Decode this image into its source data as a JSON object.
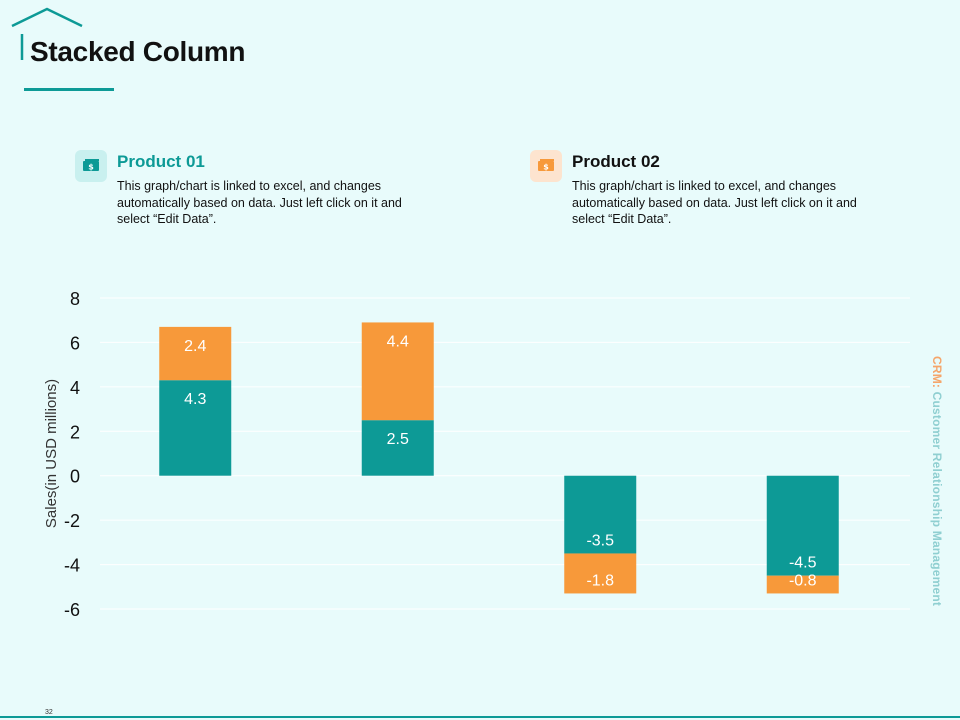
{
  "page": {
    "title": "Stacked Column",
    "side_text_accent": "CRM:",
    "side_text_rest": " Customer Relationship Management",
    "page_number": "32"
  },
  "legend": [
    {
      "title": "Product 01",
      "description": "This graph/chart is linked to excel, and changes automatically based on data. Just left click on it and select “Edit Data”.",
      "icon": "money-icon",
      "color": "#0d9a96"
    },
    {
      "title": "Product 02",
      "description": "This graph/chart is linked to excel, and changes automatically based on data. Just left click on it and select “Edit Data”.",
      "icon": "money-icon",
      "color": "#f7993a"
    }
  ],
  "colors": {
    "teal": "#0d9a96",
    "orange": "#f7993a",
    "teal_light": "#c9f0ef",
    "orange_light": "#fde4cf"
  },
  "chart_data": {
    "type": "bar",
    "stacked": true,
    "categories": [
      "",
      "",
      "",
      ""
    ],
    "series": [
      {
        "name": "Product 01",
        "values": [
          4.3,
          2.5,
          -3.5,
          -4.5
        ],
        "color": "#0d9a96"
      },
      {
        "name": "Product 02",
        "values": [
          2.4,
          4.4,
          -1.8,
          -0.8
        ],
        "color": "#f7993a"
      }
    ],
    "ylabel": "Sales(in USD millions)",
    "xlabel": "",
    "ylim": [
      -6,
      8
    ],
    "yticks": [
      8,
      6,
      4,
      2,
      0,
      -2,
      -4,
      -6
    ],
    "grid": true,
    "legend_position": "top"
  }
}
